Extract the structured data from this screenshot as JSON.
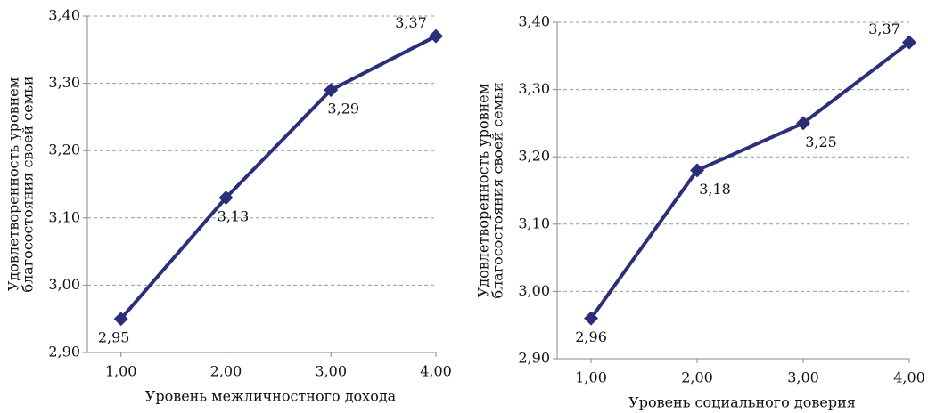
{
  "chart_data": [
    {
      "type": "line",
      "ylabel": [
        "Удовлетворенность уровнем",
        "благосостояния своей семьи"
      ],
      "xlabel": "Уровень межличностного дохода",
      "x": [
        1,
        2,
        3,
        4
      ],
      "values": [
        2.95,
        3.13,
        3.29,
        3.37
      ],
      "value_labels": [
        "2,95",
        "3,13",
        "3,29",
        "3,37"
      ],
      "color": "#2b2f7a",
      "xlim": [
        0.68,
        4
      ],
      "xticks": [
        {
          "value": 1,
          "label": "1,00"
        },
        {
          "value": 2,
          "label": "2,00"
        },
        {
          "value": 3,
          "label": "3,00"
        },
        {
          "value": 4,
          "label": "4,00"
        }
      ],
      "ylim": [
        2.9,
        3.4
      ],
      "yticks": [
        {
          "value": 2.9,
          "label": "2,90"
        },
        {
          "value": 3.0,
          "label": "3,00"
        },
        {
          "value": 3.1,
          "label": "3,10"
        },
        {
          "value": 3.2,
          "label": "3,20"
        },
        {
          "value": 3.3,
          "label": "3,30"
        },
        {
          "value": 3.4,
          "label": "3,40"
        }
      ],
      "grid": true
    },
    {
      "type": "line",
      "ylabel": [
        "Удовлетворенность уровнем",
        "благосостояния своей семьи"
      ],
      "xlabel": "Уровень социального доверия",
      "x": [
        1,
        2,
        3,
        4
      ],
      "values": [
        2.96,
        3.18,
        3.25,
        3.37
      ],
      "value_labels": [
        "2,96",
        "3,18",
        "3,25",
        "3,37"
      ],
      "color": "#2b2f7a",
      "xlim": [
        0.68,
        4
      ],
      "xticks": [
        {
          "value": 1,
          "label": "1,00"
        },
        {
          "value": 2,
          "label": "2,00"
        },
        {
          "value": 3,
          "label": "3,00"
        },
        {
          "value": 4,
          "label": "4,00"
        }
      ],
      "ylim": [
        2.9,
        3.4
      ],
      "yticks": [
        {
          "value": 2.9,
          "label": "2,90"
        },
        {
          "value": 3.0,
          "label": "3,00"
        },
        {
          "value": 3.1,
          "label": "3,10"
        },
        {
          "value": 3.2,
          "label": "3,20"
        },
        {
          "value": 3.3,
          "label": "3,30"
        },
        {
          "value": 3.4,
          "label": "3,40"
        }
      ],
      "grid": true
    }
  ]
}
